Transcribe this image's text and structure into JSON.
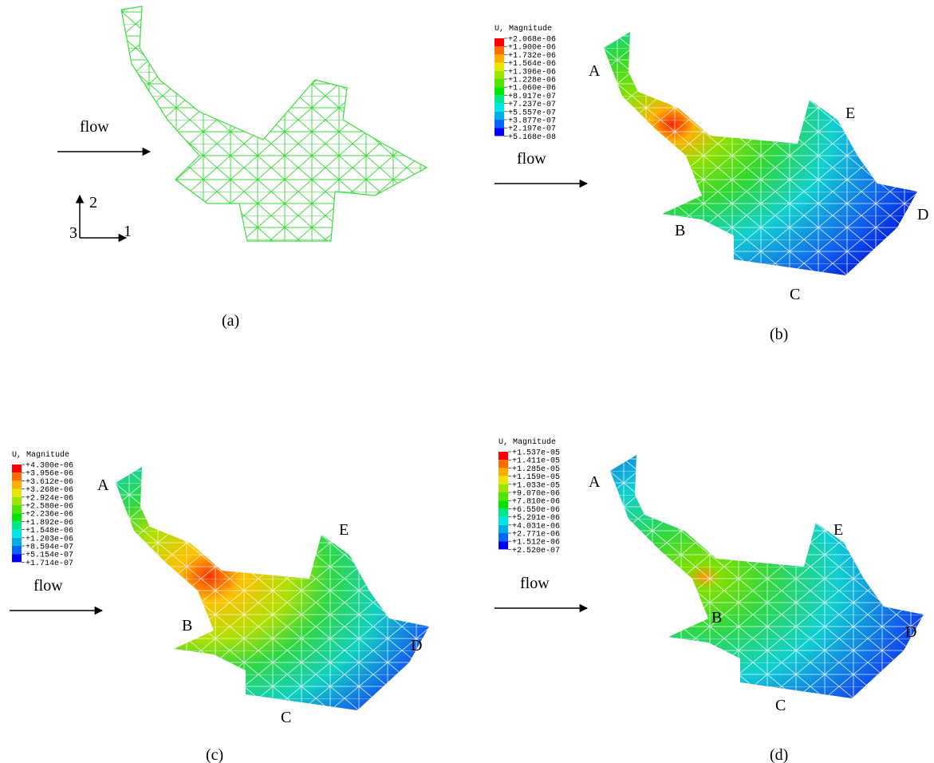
{
  "panels": [
    {
      "caption": "(a)",
      "flow": "flow",
      "axes": {
        "up": "2",
        "right": "1",
        "out": "3"
      }
    },
    {
      "caption": "(b)",
      "flow": "flow",
      "legend": {
        "title": "U, Magnitude",
        "values": [
          "+2.068e-06",
          "+1.900e-06",
          "+1.732e-06",
          "+1.564e-06",
          "+1.396e-06",
          "+1.228e-06",
          "+1.060e-06",
          "+8.917e-07",
          "+7.237e-07",
          "+5.557e-07",
          "+3.877e-07",
          "+2.197e-07",
          "+5.168e-08"
        ]
      },
      "points": [
        "A",
        "B",
        "C",
        "D",
        "E"
      ]
    },
    {
      "caption": "(c)",
      "flow": "flow",
      "legend": {
        "title": "U, Magnitude",
        "values": [
          "+4.300e-06",
          "+3.956e-06",
          "+3.612e-06",
          "+3.268e-06",
          "+2.924e-06",
          "+2.580e-06",
          "+2.236e-06",
          "+1.892e-06",
          "+1.548e-06",
          "+1.203e-06",
          "+8.594e-07",
          "+5.154e-07",
          "+1.714e-07"
        ]
      },
      "points": [
        "A",
        "B",
        "C",
        "D",
        "E"
      ]
    },
    {
      "caption": "(d)",
      "flow": "flow",
      "legend": {
        "title": "U, Magnitude",
        "values": [
          "+1.537e-05",
          "+1.411e-05",
          "+1.285e-05",
          "+1.159e-05",
          "+1.033e-05",
          "+9.070e-06",
          "+7.810e-06",
          "+6.550e-06",
          "+5.291e-06",
          "+4.031e-06",
          "+2.771e-06",
          "+1.512e-06",
          "+2.520e-07"
        ]
      },
      "points": [
        "A",
        "B",
        "C",
        "D",
        "E"
      ]
    }
  ]
}
